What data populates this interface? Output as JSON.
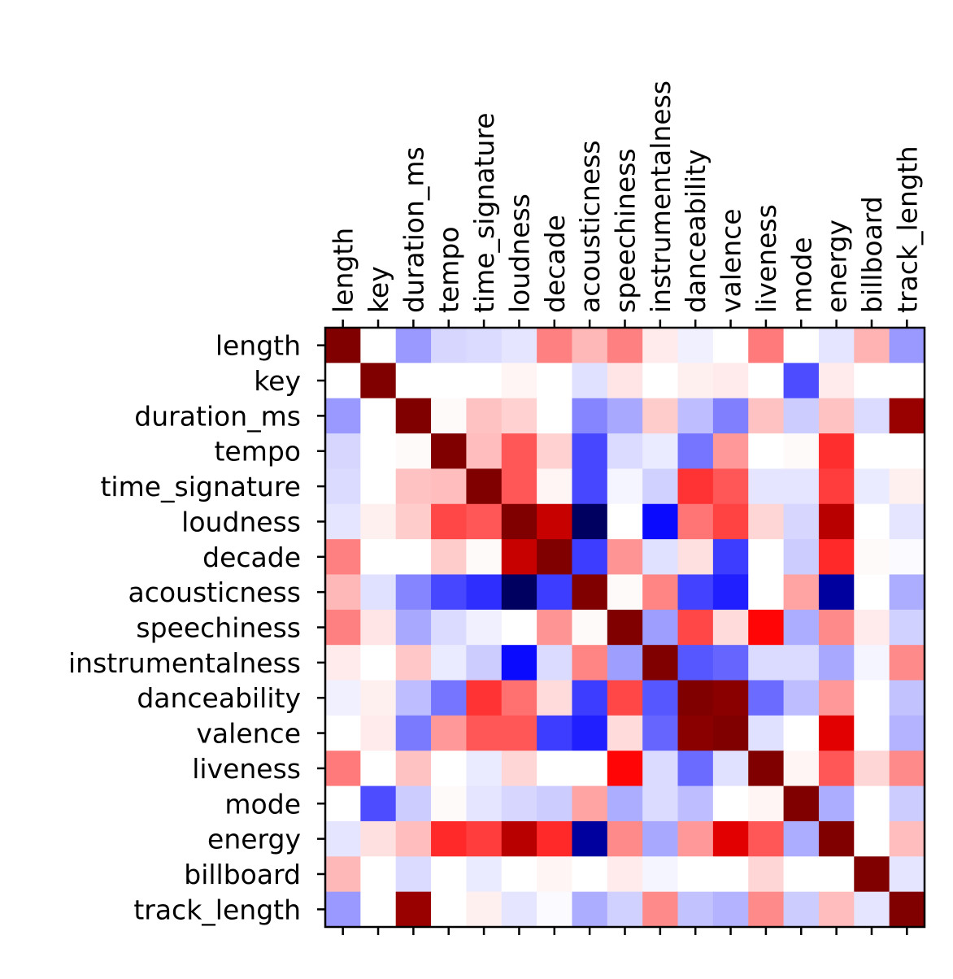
{
  "chart_data": {
    "type": "heatmap",
    "title": "",
    "xlabel": "",
    "ylabel": "",
    "x_tick_position": "top",
    "colormap": "seismic",
    "vmin": -1,
    "vmax": 1,
    "colorbar": false,
    "grid": false,
    "labels": [
      "length",
      "key",
      "duration_ms",
      "tempo",
      "time_signature",
      "loudness",
      "decade",
      "acousticness",
      "speechiness",
      "instrumentalness",
      "danceability",
      "valence",
      "liveness",
      "mode",
      "energy",
      "billboard",
      "track_length"
    ],
    "values": [
      [
        1.0,
        0.0,
        -0.2,
        -0.08,
        -0.07,
        -0.05,
        0.25,
        0.14,
        0.25,
        0.04,
        -0.03,
        0.0,
        0.26,
        0.0,
        -0.05,
        0.15,
        -0.2
      ],
      [
        0.0,
        1.0,
        0.0,
        0.0,
        0.0,
        0.02,
        0.0,
        -0.06,
        0.05,
        0.0,
        0.03,
        0.04,
        0.0,
        -0.35,
        0.04,
        0.0,
        0.0
      ],
      [
        -0.2,
        0.0,
        1.0,
        0.01,
        0.12,
        0.09,
        0.0,
        -0.24,
        -0.17,
        0.1,
        -0.13,
        -0.25,
        0.12,
        -0.1,
        0.12,
        -0.07,
        0.9
      ],
      [
        -0.08,
        0.0,
        0.01,
        1.0,
        0.13,
        0.33,
        0.09,
        -0.36,
        -0.07,
        -0.04,
        -0.27,
        0.2,
        0.0,
        0.01,
        0.41,
        0.0,
        0.0
      ],
      [
        -0.07,
        0.0,
        0.12,
        0.13,
        1.0,
        0.33,
        0.02,
        -0.36,
        -0.02,
        -0.09,
        0.4,
        0.33,
        -0.05,
        -0.05,
        0.38,
        -0.04,
        0.03
      ],
      [
        -0.05,
        0.03,
        0.1,
        0.36,
        0.33,
        1.0,
        0.72,
        -0.94,
        0.0,
        -0.48,
        0.27,
        0.37,
        0.08,
        -0.08,
        0.78,
        0.0,
        -0.05
      ],
      [
        0.25,
        0.0,
        0.0,
        0.1,
        0.01,
        0.72,
        1.0,
        -0.38,
        0.21,
        -0.06,
        0.06,
        -0.38,
        0.0,
        -0.1,
        0.42,
        0.01,
        -0.01
      ],
      [
        0.14,
        -0.06,
        -0.24,
        -0.36,
        -0.41,
        -0.94,
        -0.38,
        1.0,
        0.01,
        0.24,
        -0.37,
        -0.44,
        0.0,
        0.18,
        -0.77,
        0.0,
        -0.16
      ],
      [
        0.25,
        0.05,
        -0.17,
        -0.07,
        -0.03,
        0.0,
        0.21,
        0.01,
        1.0,
        -0.19,
        0.36,
        0.07,
        0.49,
        -0.16,
        0.23,
        0.04,
        -0.09
      ],
      [
        0.04,
        0.0,
        0.11,
        -0.04,
        -0.1,
        -0.48,
        -0.07,
        0.24,
        -0.19,
        1.0,
        -0.33,
        -0.3,
        -0.07,
        -0.07,
        -0.17,
        -0.02,
        0.23
      ],
      [
        -0.03,
        0.03,
        -0.13,
        -0.27,
        0.4,
        0.28,
        0.07,
        -0.38,
        0.36,
        -0.33,
        1.0,
        0.96,
        -0.29,
        -0.13,
        0.2,
        0.0,
        -0.12
      ],
      [
        0.0,
        0.04,
        -0.26,
        0.2,
        0.33,
        0.33,
        -0.38,
        -0.44,
        0.07,
        -0.3,
        0.96,
        1.0,
        -0.06,
        0.0,
        0.61,
        0.0,
        -0.15
      ],
      [
        0.26,
        0.0,
        0.12,
        0.0,
        -0.04,
        0.08,
        0.0,
        0.0,
        0.49,
        -0.07,
        -0.29,
        -0.06,
        1.0,
        0.02,
        0.33,
        0.08,
        0.23
      ],
      [
        0.0,
        -0.35,
        -0.1,
        0.01,
        -0.05,
        -0.08,
        -0.1,
        0.18,
        -0.16,
        -0.07,
        -0.13,
        0.0,
        0.02,
        1.0,
        -0.16,
        0.0,
        -0.1
      ],
      [
        -0.05,
        0.06,
        0.13,
        0.42,
        0.38,
        0.78,
        0.42,
        -0.77,
        0.23,
        -0.17,
        0.2,
        0.61,
        0.33,
        -0.16,
        1.0,
        0.0,
        0.13
      ],
      [
        0.14,
        0.0,
        -0.07,
        0.0,
        -0.04,
        0.0,
        0.02,
        0.0,
        0.04,
        -0.02,
        0.0,
        0.0,
        0.08,
        0.0,
        0.0,
        1.0,
        -0.05
      ],
      [
        -0.2,
        0.0,
        0.9,
        0.0,
        0.03,
        -0.05,
        -0.01,
        -0.16,
        -0.09,
        0.23,
        -0.12,
        -0.15,
        0.23,
        -0.1,
        0.13,
        -0.05,
        1.0
      ]
    ]
  }
}
